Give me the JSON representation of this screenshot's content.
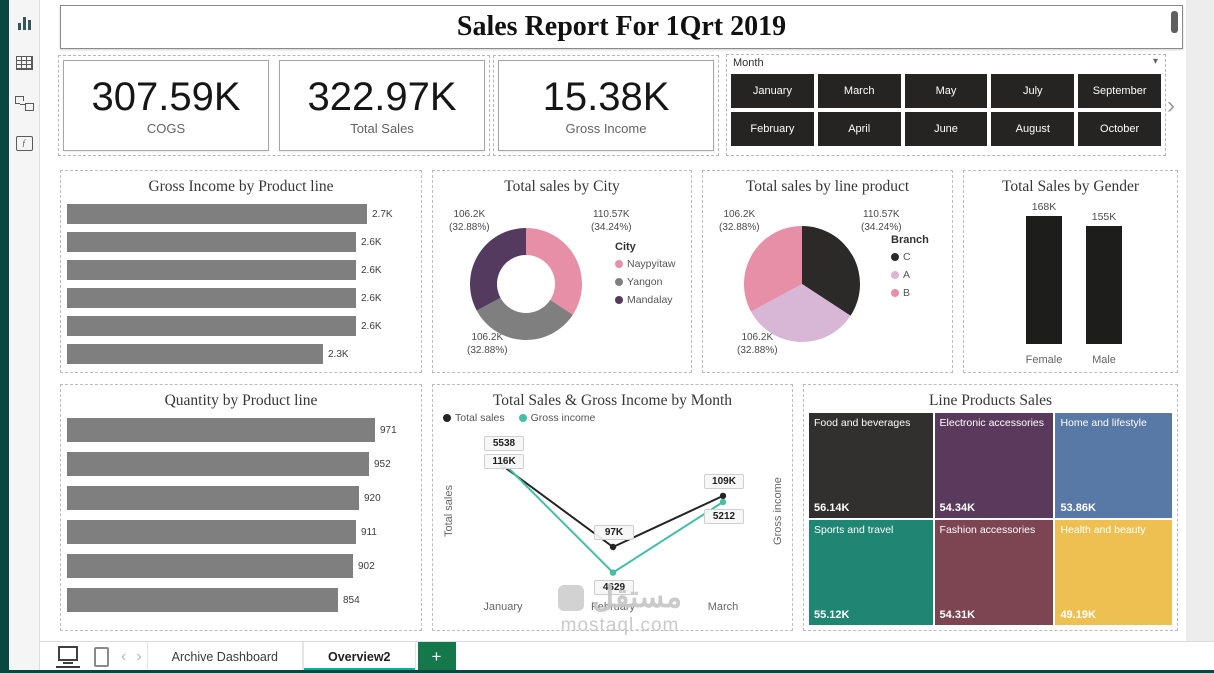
{
  "app": {
    "sidebar_icons": [
      "report-view",
      "data-view",
      "model-view",
      "dax-query-view"
    ],
    "page_tabs": [
      {
        "label": "Archive Dashboard",
        "active": false
      },
      {
        "label": "Overview2",
        "active": true
      }
    ],
    "add_page_label": "+",
    "accent_teal": "#00b69e",
    "edge_color": "#0a4741"
  },
  "watermark": {
    "line1": "مستقل",
    "line2": "mostaql.com"
  },
  "report": {
    "title": "Sales Report For 1Qrt 2019",
    "kpis": [
      {
        "value": "307.59K",
        "label": "COGS"
      },
      {
        "value": "322.97K",
        "label": "Total Sales"
      },
      {
        "value": "15.38K",
        "label": "Gross Income"
      }
    ],
    "slicer": {
      "title": "Month",
      "rows": [
        [
          "January",
          "March",
          "May",
          "July",
          "September"
        ],
        [
          "February",
          "April",
          "June",
          "August",
          "October"
        ]
      ]
    }
  },
  "chart_data": [
    {
      "id": "gross-income-by-product-line",
      "type": "bar",
      "orientation": "horizontal",
      "title": "Gross Income by Product line",
      "values": [
        2.7,
        2.6,
        2.6,
        2.6,
        2.6,
        2.3
      ],
      "value_labels": [
        "2.7K",
        "2.6K",
        "2.6K",
        "2.6K",
        "2.6K",
        "2.3K"
      ],
      "bar_color": "#7f7f7f"
    },
    {
      "id": "total-sales-by-city",
      "type": "pie",
      "subtype": "donut",
      "title": "Total sales by City",
      "legend_title": "City",
      "legend_position": "right",
      "slices": [
        {
          "name": "Naypyitaw",
          "value": 110.57,
          "value_label": "110.57K",
          "pct_label": "(34.24%)",
          "color": "#e78fa7"
        },
        {
          "name": "Yangon",
          "value": 106.2,
          "value_label": "106.2K",
          "pct_label": "(32.88%)",
          "color": "#7f7f7f"
        },
        {
          "name": "Mandalay",
          "value": 106.2,
          "value_label": "106.2K",
          "pct_label": "(32.88%)",
          "color": "#533a5e"
        }
      ]
    },
    {
      "id": "total-sales-by-line-product",
      "type": "pie",
      "title": "Total sales by line product",
      "legend_title": "Branch",
      "legend_position": "right",
      "slices": [
        {
          "name": "C",
          "value": 110.57,
          "value_label": "110.57K",
          "pct_label": "(34.24%)",
          "color": "#2b2a29"
        },
        {
          "name": "A",
          "value": 106.2,
          "value_label": "106.2K",
          "pct_label": "(32.88%)",
          "color": "#d8b7d6"
        },
        {
          "name": "B",
          "value": 106.2,
          "value_label": "106.2K",
          "pct_label": "(32.88%)",
          "color": "#e78fa7"
        }
      ]
    },
    {
      "id": "total-sales-by-gender",
      "type": "bar",
      "orientation": "vertical",
      "title": "Total Sales by Gender",
      "categories": [
        "Female",
        "Male"
      ],
      "values": [
        168,
        155
      ],
      "value_labels": [
        "168K",
        "155K"
      ],
      "bar_color": "#1d1d1b"
    },
    {
      "id": "quantity-by-product-line",
      "type": "bar",
      "orientation": "horizontal",
      "title": "Quantity by Product line",
      "values": [
        971,
        952,
        920,
        911,
        902,
        854
      ],
      "value_labels": [
        "971",
        "952",
        "920",
        "911",
        "902",
        "854"
      ],
      "bar_color": "#7f7f7f"
    },
    {
      "id": "total-sales-and-gross-income-by-month",
      "type": "line",
      "title": "Total Sales & Gross Income by Month",
      "x": [
        "January",
        "February",
        "March"
      ],
      "y_axis_left_label": "Total sales",
      "y_axis_right_label": "Gross income",
      "series": [
        {
          "name": "Total sales",
          "color": "#252423",
          "values": [
            116,
            97,
            109
          ],
          "value_labels": [
            "116K",
            "97K",
            "109K"
          ]
        },
        {
          "name": "Gross income",
          "color": "#43bfa6",
          "values": [
            5538,
            4629,
            5212
          ],
          "value_labels": [
            "5538",
            "4629",
            "5212"
          ]
        }
      ]
    },
    {
      "id": "line-products-sales",
      "type": "treemap",
      "title": "Line Products Sales",
      "cells": [
        {
          "name": "Food and beverages",
          "value": 56.14,
          "value_label": "56.14K",
          "color": "#31302e"
        },
        {
          "name": "Electronic accessories",
          "value": 54.34,
          "value_label": "54.34K",
          "color": "#5a3a5c"
        },
        {
          "name": "Home and lifestyle",
          "value": 53.86,
          "value_label": "53.86K",
          "color": "#5878a6"
        },
        {
          "name": "Sports and travel",
          "value": 55.12,
          "value_label": "55.12K",
          "color": "#1e8672"
        },
        {
          "name": "Fashion accessories",
          "value": 54.31,
          "value_label": "54.31K",
          "color": "#7d4452"
        },
        {
          "name": "Health and beauty",
          "value": 49.19,
          "value_label": "49.19K",
          "color": "#eec052"
        }
      ]
    }
  ]
}
